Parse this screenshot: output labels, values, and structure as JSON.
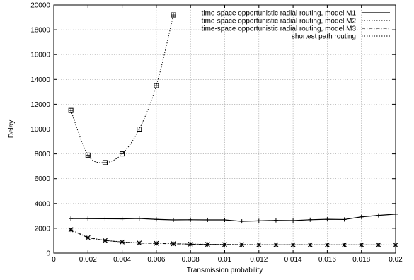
{
  "chart_data": {
    "type": "line",
    "title": "",
    "xlabel": "Transmission probability",
    "ylabel": "Delay",
    "xlim": [
      0,
      0.02
    ],
    "ylim": [
      0,
      20000
    ],
    "xticks": [
      0,
      0.002,
      0.004,
      0.006,
      0.008,
      0.01,
      0.012,
      0.014,
      0.016,
      0.018,
      0.02
    ],
    "yticks": [
      0,
      2000,
      4000,
      6000,
      8000,
      10000,
      12000,
      14000,
      16000,
      18000,
      20000
    ],
    "xtick_labels": [
      "0",
      "0.002",
      "0.004",
      "0.006",
      "0.008",
      "0.01",
      "0.012",
      "0.014",
      "0.016",
      "0.018",
      "0.02"
    ],
    "ytick_labels": [
      "0",
      "2000",
      "4000",
      "6000",
      "8000",
      "10000",
      "12000",
      "14000",
      "16000",
      "18000",
      "20000"
    ],
    "grid": true,
    "legend_position": "top-right",
    "series": [
      {
        "name": "time-space opportunistic radial routing, model M1",
        "line_style": "solid",
        "marker": "plus",
        "x": [
          0.001,
          0.002,
          0.003,
          0.004,
          0.005,
          0.006,
          0.007,
          0.008,
          0.009,
          0.01,
          0.011,
          0.012,
          0.013,
          0.014,
          0.015,
          0.016,
          0.017,
          0.018,
          0.019,
          0.02
        ],
        "y": [
          2780,
          2780,
          2770,
          2760,
          2790,
          2720,
          2680,
          2690,
          2680,
          2680,
          2560,
          2600,
          2640,
          2620,
          2690,
          2730,
          2710,
          2920,
          3040,
          3140
        ]
      },
      {
        "name": "time-space opportunistic radial routing, model M2",
        "line_style": "dotted",
        "marker": "cross",
        "x": [
          0.001,
          0.002,
          0.003,
          0.004,
          0.005,
          0.006,
          0.007,
          0.008,
          0.009,
          0.01,
          0.011,
          0.012,
          0.013,
          0.014,
          0.015,
          0.016,
          0.017,
          0.018,
          0.019,
          0.02
        ],
        "y": [
          1900,
          1250,
          1020,
          900,
          820,
          790,
          760,
          730,
          710,
          700,
          690,
          680,
          680,
          680,
          670,
          670,
          670,
          670,
          670,
          660
        ]
      },
      {
        "name": "time-space opportunistic radial routing, model M3",
        "line_style": "dashdot",
        "marker": "star",
        "x": [
          0.001,
          0.002,
          0.003,
          0.004,
          0.005,
          0.006,
          0.007,
          0.008,
          0.009,
          0.01,
          0.011,
          0.012,
          0.013,
          0.014,
          0.015,
          0.016,
          0.017,
          0.018,
          0.019,
          0.02
        ],
        "y": [
          1870,
          1240,
          1010,
          890,
          810,
          780,
          750,
          720,
          700,
          690,
          680,
          670,
          670,
          670,
          660,
          660,
          660,
          660,
          660,
          650
        ]
      },
      {
        "name": "shortest path routing",
        "line_style": "dotted",
        "marker": "square",
        "x": [
          0.001,
          0.002,
          0.003,
          0.004,
          0.005,
          0.006,
          0.007
        ],
        "y": [
          11500,
          7900,
          7300,
          8000,
          10000,
          13500,
          19200
        ]
      }
    ]
  }
}
